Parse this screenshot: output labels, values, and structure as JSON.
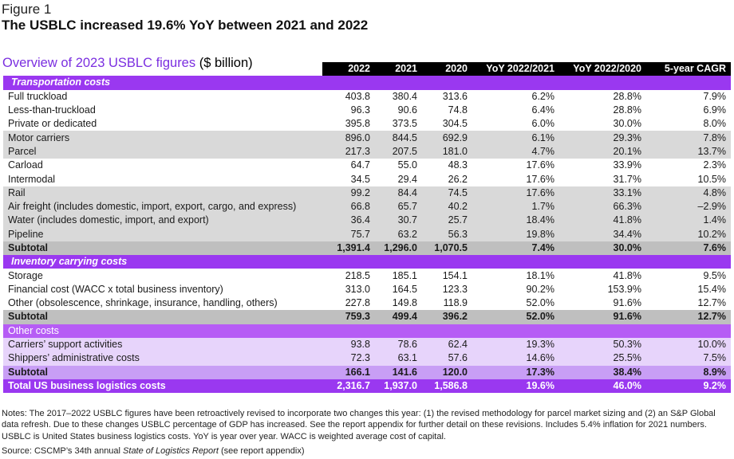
{
  "figure_label": "Figure 1",
  "figure_title": "The USBLC increased 19.6% YoY between 2021 and 2022",
  "caption_main": "Overview of 2023 USBLC figures",
  "caption_unit": " ($ billion)",
  "columns": [
    "2022",
    "2021",
    "2020",
    "YoY 2022/2021",
    "YoY 2022/2020",
    "5-year CAGR"
  ],
  "rows": [
    {
      "style": "sec-purple",
      "label": "Transportation costs",
      "values": [
        "",
        "",
        "",
        "",
        "",
        ""
      ]
    },
    {
      "style": "bg-white",
      "label": "Full truckload",
      "values": [
        "403.8",
        "380.4",
        "313.6",
        "6.2%",
        "28.8%",
        "7.9%"
      ]
    },
    {
      "style": "bg-white",
      "label": "Less-than-truckload",
      "values": [
        "96.3",
        "90.6",
        "74.8",
        "6.4%",
        "28.8%",
        "6.9%"
      ]
    },
    {
      "style": "bg-white",
      "label": "Private or dedicated",
      "values": [
        "395.8",
        "373.5",
        "304.5",
        "6.0%",
        "30.0%",
        "8.0%"
      ]
    },
    {
      "style": "bg-gray",
      "label": "Motor carriers",
      "values": [
        "896.0",
        "844.5",
        "692.9",
        "6.1%",
        "29.3%",
        "7.8%"
      ]
    },
    {
      "style": "bg-gray",
      "label": "Parcel",
      "values": [
        "217.3",
        "207.5",
        "181.0",
        "4.7%",
        "20.1%",
        "13.7%"
      ]
    },
    {
      "style": "bg-white",
      "label": "Carload",
      "values": [
        "64.7",
        "55.0",
        "48.3",
        "17.6%",
        "33.9%",
        "2.3%"
      ]
    },
    {
      "style": "bg-white",
      "label": "Intermodal",
      "values": [
        "34.5",
        "29.4",
        "26.2",
        "17.6%",
        "31.7%",
        "10.5%"
      ]
    },
    {
      "style": "bg-gray",
      "label": "Rail",
      "values": [
        "99.2",
        "84.4",
        "74.5",
        "17.6%",
        "33.1%",
        "4.8%"
      ]
    },
    {
      "style": "bg-gray",
      "label": "Air freight (includes domestic, import, export, cargo, and express)",
      "values": [
        "66.8",
        "65.7",
        "40.2",
        "1.7%",
        "66.3%",
        "–2.9%"
      ]
    },
    {
      "style": "bg-gray",
      "label": "Water (includes domestic, import, and export)",
      "values": [
        "36.4",
        "30.7",
        "25.7",
        "18.4%",
        "41.8%",
        "1.4%"
      ]
    },
    {
      "style": "bg-gray",
      "label": "Pipeline",
      "values": [
        "75.7",
        "63.2",
        "56.3",
        "19.8%",
        "34.4%",
        "10.2%"
      ]
    },
    {
      "style": "sub-gray",
      "label": "Subtotal",
      "values": [
        "1,391.4",
        "1,296.0",
        "1,070.5",
        "7.4%",
        "30.0%",
        "7.6%"
      ]
    },
    {
      "style": "sec-purple",
      "label": "Inventory carrying costs",
      "values": [
        "",
        "",
        "",
        "",
        "",
        ""
      ]
    },
    {
      "style": "bg-white",
      "label": "Storage",
      "values": [
        "218.5",
        "185.1",
        "154.1",
        "18.1%",
        "41.8%",
        "9.5%"
      ]
    },
    {
      "style": "bg-white",
      "label": "Financial cost (WACC x total business inventory)",
      "values": [
        "313.0",
        "164.5",
        "123.3",
        "90.2%",
        "153.9%",
        "15.4%"
      ]
    },
    {
      "style": "bg-white",
      "label": "Other (obsolescence, shrinkage, insurance, handling, others)",
      "values": [
        "227.8",
        "149.8",
        "118.9",
        "52.0%",
        "91.6%",
        "12.7%"
      ]
    },
    {
      "style": "sub-gray",
      "label": "Subtotal",
      "values": [
        "759.3",
        "499.4",
        "396.2",
        "52.0%",
        "91.6%",
        "12.7%"
      ]
    },
    {
      "style": "sec-light",
      "label": "Other costs",
      "values": [
        "",
        "",
        "",
        "",
        "",
        ""
      ]
    },
    {
      "style": "bg-lav",
      "label": "Carriers’ support activities",
      "values": [
        "93.8",
        "78.6",
        "62.4",
        "19.3%",
        "50.3%",
        "10.0%"
      ]
    },
    {
      "style": "bg-lav",
      "label": "Shippers’ administrative costs",
      "values": [
        "72.3",
        "63.1",
        "57.6",
        "14.6%",
        "25.5%",
        "7.5%"
      ]
    },
    {
      "style": "sub-lav",
      "label": "Subtotal",
      "values": [
        "166.1",
        "141.6",
        "120.0",
        "17.3%",
        "38.4%",
        "8.9%"
      ]
    },
    {
      "style": "total",
      "label": "Total US business logistics costs",
      "values": [
        "2,316.7",
        "1,937.0",
        "1,586.8",
        "19.6%",
        "46.0%",
        "9.2%"
      ]
    }
  ],
  "notes": "Notes: The 2017–2022 USBLC figures have been retroactively revised to incorporate two changes this year: (1) the revised methodology for parcel market sizing and (2) an S&P Global data refresh. Due to these changes USBLC percentage of GDP has increased. See the report appendix for further detail on these revisions. Includes 5.4% inflation for 2021 numbers. USBLC is United States business logistics costs. YoY is year over year. WACC is weighted average cost of capital.",
  "source_prefix": "Source: CSCMP’s 34th annual ",
  "source_italic": "State of Logistics Report",
  "source_suffix": " (see report appendix)",
  "colors": {
    "accent_purple": "#9a38f0",
    "light_purple": "#b65cf5",
    "lavender": "#e7d4fb",
    "gray": "#d9d9d9",
    "subtotal_gray": "#bfbfbf",
    "header_black": "#000000"
  }
}
